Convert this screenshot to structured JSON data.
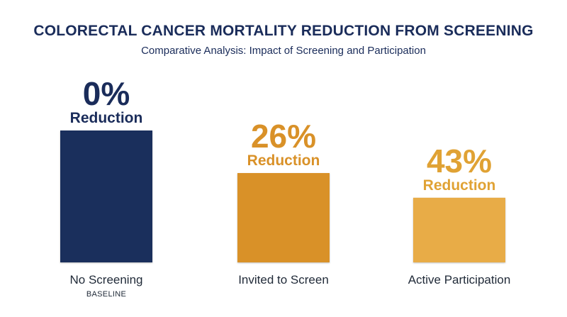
{
  "chart_data": {
    "type": "bar",
    "title": "COLORECTAL CANCER MORTALITY REDUCTION FROM SCREENING",
    "subtitle": "Comparative Analysis: Impact of Screening and Participation",
    "categories": [
      "No Screening",
      "Invited to Screen",
      "Active Participation"
    ],
    "category_sublabels": [
      "BASELINE",
      "",
      ""
    ],
    "values": [
      0,
      26,
      43
    ],
    "value_labels": [
      "0%",
      "26%",
      "43%"
    ],
    "value_unit_label": "Reduction",
    "bar_colors": [
      "#1a2f5c",
      "#d99128",
      "#e8ac47"
    ],
    "label_colors": [
      "#1a2c5a",
      "#d99128",
      "#e0a234"
    ]
  }
}
